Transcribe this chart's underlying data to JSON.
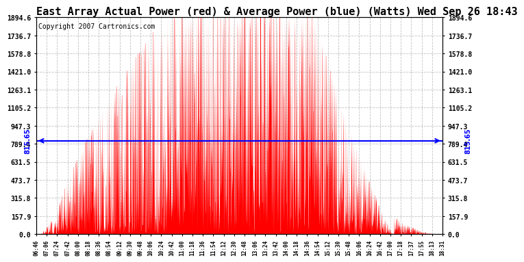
{
  "title": "East Array Actual Power (red) & Average Power (blue) (Watts) Wed Sep 26 18:43",
  "copyright": "Copyright 2007 Cartronics.com",
  "avg_power": 815.65,
  "y_max": 1894.6,
  "y_ticks": [
    0.0,
    157.9,
    315.8,
    473.7,
    631.5,
    789.4,
    947.3,
    1105.2,
    1263.1,
    1421.0,
    1578.8,
    1736.7,
    1894.6
  ],
  "x_labels": [
    "06:46",
    "07:06",
    "07:24",
    "07:42",
    "08:00",
    "08:18",
    "08:36",
    "08:54",
    "09:12",
    "09:30",
    "09:48",
    "10:06",
    "10:24",
    "10:42",
    "11:00",
    "11:18",
    "11:36",
    "11:54",
    "12:12",
    "12:30",
    "12:48",
    "13:06",
    "13:24",
    "13:42",
    "14:00",
    "14:18",
    "14:36",
    "14:54",
    "15:12",
    "15:30",
    "15:48",
    "16:06",
    "16:24",
    "16:42",
    "17:00",
    "17:18",
    "17:37",
    "17:55",
    "18:13",
    "18:31"
  ],
  "fill_color": "#FF0000",
  "line_color": "#0000FF",
  "background_color": "#FFFFFF",
  "grid_color": "#BBBBBB",
  "title_fontsize": 11,
  "copyright_fontsize": 7
}
